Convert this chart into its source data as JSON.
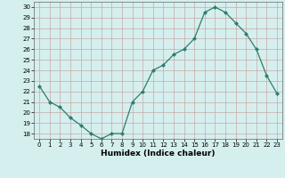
{
  "x": [
    0,
    1,
    2,
    3,
    4,
    5,
    6,
    7,
    8,
    9,
    10,
    11,
    12,
    13,
    14,
    15,
    16,
    17,
    18,
    19,
    20,
    21,
    22,
    23
  ],
  "y": [
    22.5,
    21.0,
    20.5,
    19.5,
    18.8,
    18.0,
    17.5,
    18.0,
    18.0,
    21.0,
    22.0,
    24.0,
    24.5,
    25.5,
    26.0,
    27.0,
    29.5,
    30.0,
    29.5,
    28.5,
    27.5,
    26.0,
    23.5,
    21.8
  ],
  "line_color": "#2e7d6e",
  "marker": "D",
  "markersize": 2.0,
  "linewidth": 0.9,
  "xlabel": "Humidex (Indice chaleur)",
  "ylim": [
    17.5,
    30.5
  ],
  "yticks": [
    18,
    19,
    20,
    21,
    22,
    23,
    24,
    25,
    26,
    27,
    28,
    29,
    30
  ],
  "xlim": [
    -0.5,
    23.5
  ],
  "xticks": [
    0,
    1,
    2,
    3,
    4,
    5,
    6,
    7,
    8,
    9,
    10,
    11,
    12,
    13,
    14,
    15,
    16,
    17,
    18,
    19,
    20,
    21,
    22,
    23
  ],
  "bg_color": "#d5efee",
  "grid_color_major": "#c8a8a8",
  "grid_color_minor": "#d0bcbc",
  "tick_label_fontsize": 5.0,
  "xlabel_fontsize": 6.5,
  "xlabel_fontweight": "bold"
}
